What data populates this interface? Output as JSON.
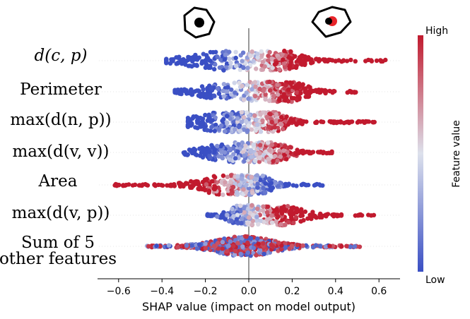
{
  "chart_data": {
    "type": "scatter",
    "subtype": "shap-beeswarm",
    "title": "",
    "xlabel": "SHAP value (impact on model output)",
    "ylabel": "",
    "xlim": [
      -0.7,
      0.7
    ],
    "xticks": [
      -0.6,
      -0.4,
      -0.2,
      0.0,
      0.2,
      0.4,
      0.6
    ],
    "xtick_labels": [
      "−0.6",
      "−0.4",
      "−0.2",
      "0.0",
      "0.2",
      "0.4",
      "0.6"
    ],
    "features": [
      {
        "label": [
          "d(c, p)"
        ],
        "min": -0.38,
        "max": 0.63,
        "high_side": "positive",
        "peaks": [
          [
            -0.1,
            0.16
          ],
          [
            0.15,
            0.08
          ]
        ]
      },
      {
        "label": [
          "Perimeter"
        ],
        "min": -0.34,
        "max": 0.5,
        "high_side": "positive",
        "peaks": [
          [
            -0.05,
            0.15
          ],
          [
            0.18,
            0.08
          ]
        ]
      },
      {
        "label": [
          "max(d(n, p))"
        ],
        "min": -0.28,
        "max": 0.58,
        "high_side": "positive",
        "peaks": [
          [
            -0.1,
            0.15
          ],
          [
            0.06,
            0.09
          ]
        ]
      },
      {
        "label": [
          "max(d(v, v))"
        ],
        "min": -0.3,
        "max": 0.39,
        "high_side": "positive",
        "peaks": [
          [
            -0.08,
            0.12
          ],
          [
            0.1,
            0.08
          ]
        ]
      },
      {
        "label": [
          "Area"
        ],
        "min": -0.63,
        "max": 0.35,
        "high_side": "negative",
        "peaks": [
          [
            -0.1,
            0.12
          ],
          [
            0.02,
            0.06
          ]
        ]
      },
      {
        "label": [
          "max(d(v, p))"
        ],
        "min": -0.2,
        "max": 0.58,
        "high_side": "positive",
        "peaks": [
          [
            -0.03,
            0.06
          ],
          [
            0.15,
            0.1
          ]
        ]
      },
      {
        "label": [
          "Sum of 5",
          "other features"
        ],
        "min": -0.47,
        "max": 0.52,
        "high_side": "mixed",
        "peaks": [
          [
            -0.02,
            0.13
          ]
        ]
      }
    ],
    "colorbar": {
      "label": "Feature value",
      "high": "High",
      "low": "Low"
    },
    "header_icons": [
      "centered-eye-icon",
      "offset-eye-icon"
    ]
  },
  "colors": {
    "low": "#3a4fc4",
    "mid": "#dde1ec",
    "high": "#c11a2e",
    "zero_line": "#9a9a9a",
    "header_red": "#e8252a"
  }
}
